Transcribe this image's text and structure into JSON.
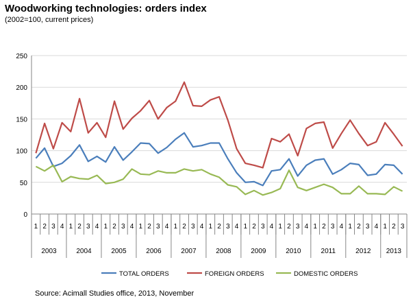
{
  "chart_data": {
    "type": "line",
    "title": "Woodworking technologies: orders index",
    "subtitle": "(2002=100, current prices)",
    "xlabel": "",
    "ylabel": "",
    "ylim": [
      0,
      250
    ],
    "yticks": [
      0,
      50,
      100,
      150,
      200,
      250
    ],
    "years": [
      {
        "label": "2003",
        "quarters": [
          "1",
          "2",
          "3",
          "4"
        ]
      },
      {
        "label": "2004",
        "quarters": [
          "1",
          "2",
          "3",
          "4"
        ]
      },
      {
        "label": "2005",
        "quarters": [
          "1",
          "2",
          "3",
          "4"
        ]
      },
      {
        "label": "2006",
        "quarters": [
          "1",
          "2",
          "3",
          "4"
        ]
      },
      {
        "label": "2007",
        "quarters": [
          "1",
          "2",
          "3",
          "4"
        ]
      },
      {
        "label": "2008",
        "quarters": [
          "1",
          "2",
          "3",
          "4"
        ]
      },
      {
        "label": "2009",
        "quarters": [
          "1",
          "2",
          "3",
          "4"
        ]
      },
      {
        "label": "2010",
        "quarters": [
          "1",
          "2",
          "3",
          "4"
        ]
      },
      {
        "label": "2011",
        "quarters": [
          "1",
          "2",
          "3",
          "4"
        ]
      },
      {
        "label": "2012",
        "quarters": [
          "1",
          "2",
          "3",
          "4"
        ]
      },
      {
        "label": "2013",
        "quarters": [
          "1",
          "2",
          "3"
        ]
      }
    ],
    "series": [
      {
        "name": "TOTAL ORDERS",
        "color": "#4a7ebb",
        "values": [
          88,
          104,
          75,
          80,
          92,
          109,
          83,
          91,
          82,
          106,
          85,
          98,
          112,
          111,
          96,
          105,
          118,
          128,
          106,
          108,
          112,
          112,
          87,
          65,
          50,
          51,
          45,
          68,
          70,
          87,
          60,
          77,
          85,
          87,
          63,
          70,
          80,
          78,
          61,
          63,
          78,
          77,
          63
        ]
      },
      {
        "name": "FOREIGN ORDERS",
        "color": "#be4b48",
        "values": [
          96,
          143,
          103,
          144,
          130,
          182,
          128,
          144,
          121,
          178,
          134,
          151,
          163,
          179,
          150,
          168,
          178,
          208,
          171,
          170,
          180,
          185,
          148,
          103,
          80,
          77,
          73,
          119,
          114,
          126,
          92,
          135,
          143,
          145,
          104,
          127,
          148,
          127,
          108,
          114,
          144,
          126,
          107
        ]
      },
      {
        "name": "DOMESTIC ORDERS",
        "color": "#98b954",
        "values": [
          75,
          68,
          77,
          51,
          59,
          56,
          55,
          61,
          48,
          50,
          55,
          71,
          63,
          62,
          68,
          65,
          65,
          71,
          68,
          70,
          63,
          58,
          46,
          43,
          31,
          37,
          30,
          34,
          40,
          69,
          42,
          37,
          42,
          47,
          42,
          32,
          32,
          44,
          32,
          32,
          31,
          43,
          36
        ]
      }
    ],
    "legend_position": "bottom",
    "source": "Source: Acimall Studies office, 2013, November"
  }
}
